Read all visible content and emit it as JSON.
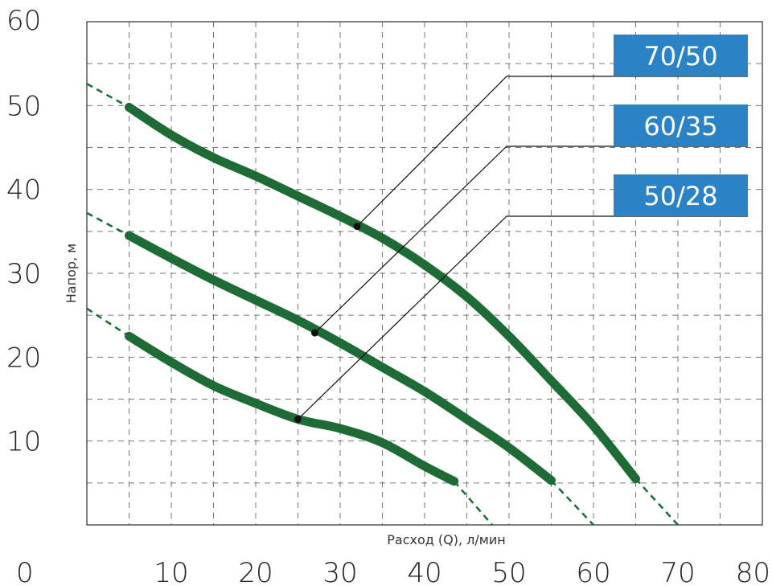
{
  "chart_data": {
    "type": "line",
    "title": "",
    "xlabel": "Расход (Q), л/мин",
    "ylabel": "Напор, м",
    "xlim": [
      0,
      80
    ],
    "ylim": [
      0,
      60
    ],
    "x_ticks": [
      "0",
      "10",
      "20",
      "30",
      "40",
      "50",
      "60",
      "70",
      "80"
    ],
    "y_ticks": [
      "10",
      "20",
      "30",
      "40",
      "50",
      "60"
    ],
    "grid": true,
    "colors": {
      "curve": "#1e6b35",
      "legend_bg": "#2b83c6",
      "grid": "#777777",
      "leader": "#111111"
    },
    "series": [
      {
        "name": "70/50",
        "values": [
          [
            5,
            49.8
          ],
          [
            10,
            46.5
          ],
          [
            15,
            43.8
          ],
          [
            20,
            41.6
          ],
          [
            25,
            39.2
          ],
          [
            30,
            36.8
          ],
          [
            35,
            34.2
          ],
          [
            40,
            31.0
          ],
          [
            45,
            27.2
          ],
          [
            50,
            22.5
          ],
          [
            55,
            17.2
          ],
          [
            60,
            11.8
          ],
          [
            65,
            5.5
          ]
        ],
        "extrapolation_start": [
          0,
          52.6
        ],
        "extrapolation_end": [
          70,
          0
        ],
        "marker": [
          32,
          35.6
        ]
      },
      {
        "name": "60/35",
        "values": [
          [
            5,
            34.5
          ],
          [
            10,
            31.8
          ],
          [
            15,
            29.2
          ],
          [
            20,
            26.8
          ],
          [
            25,
            24.4
          ],
          [
            30,
            21.7
          ],
          [
            35,
            18.8
          ],
          [
            40,
            15.9
          ],
          [
            45,
            12.6
          ],
          [
            50,
            9.2
          ],
          [
            55,
            5.3
          ]
        ],
        "extrapolation_start": [
          0,
          37.2
        ],
        "extrapolation_end": [
          60,
          0
        ],
        "marker": [
          27,
          22.9
        ]
      },
      {
        "name": "50/28",
        "values": [
          [
            5,
            22.5
          ],
          [
            10,
            19.4
          ],
          [
            15,
            16.6
          ],
          [
            20,
            14.5
          ],
          [
            25,
            12.6
          ],
          [
            30,
            11.5
          ],
          [
            35,
            9.8
          ],
          [
            40,
            7.0
          ],
          [
            43.5,
            5.2
          ]
        ],
        "extrapolation_start": [
          0,
          25.8
        ],
        "extrapolation_end": [
          48,
          0
        ],
        "marker": [
          25,
          12.6
        ]
      }
    ]
  }
}
